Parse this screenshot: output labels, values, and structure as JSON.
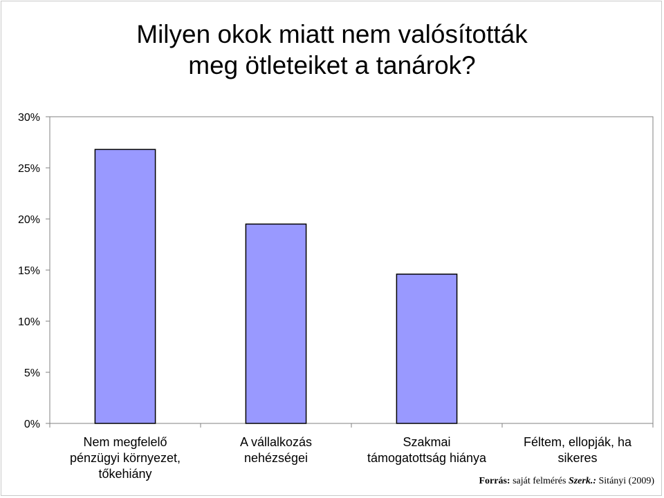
{
  "title": "Milyen okok miatt nem valósították\nmeg ötleteiket a tanárok?",
  "source": {
    "label": "Forrás:",
    "text": "saját felmérés",
    "editor_label": "Szerk.:",
    "editor": "Sitányi (2009)"
  },
  "colors": {
    "bar_fill": "#9999ff",
    "bar_stroke": "#000000",
    "axis": "#808080"
  },
  "chart_data": {
    "type": "bar",
    "title": "Milyen okok miatt nem valósították meg ötleteiket a tanárok?",
    "categories": [
      "Nem megfelelő pénzügyi környezet, tőkehiány",
      "A vállalkozás nehézségei",
      "Szakmai támogatottság hiánya",
      "Féltem, ellopják, ha sikeres"
    ],
    "category_lines": [
      [
        "Nem megfelelő",
        "pénzügyi környezet,",
        "tőkehiány"
      ],
      [
        "A vállalkozás",
        "nehézségei"
      ],
      [
        "Szakmai",
        "támogatottság hiánya"
      ],
      [
        "Féltem, ellopják, ha",
        "sikeres"
      ]
    ],
    "values": [
      26.8,
      19.5,
      14.6,
      0
    ],
    "ylim": [
      0,
      30
    ],
    "yticks": [
      0,
      5,
      10,
      15,
      20,
      25,
      30
    ],
    "ytick_labels": [
      "0%",
      "5%",
      "10%",
      "15%",
      "20%",
      "25%",
      "30%"
    ],
    "grid": false,
    "legend": "none"
  }
}
